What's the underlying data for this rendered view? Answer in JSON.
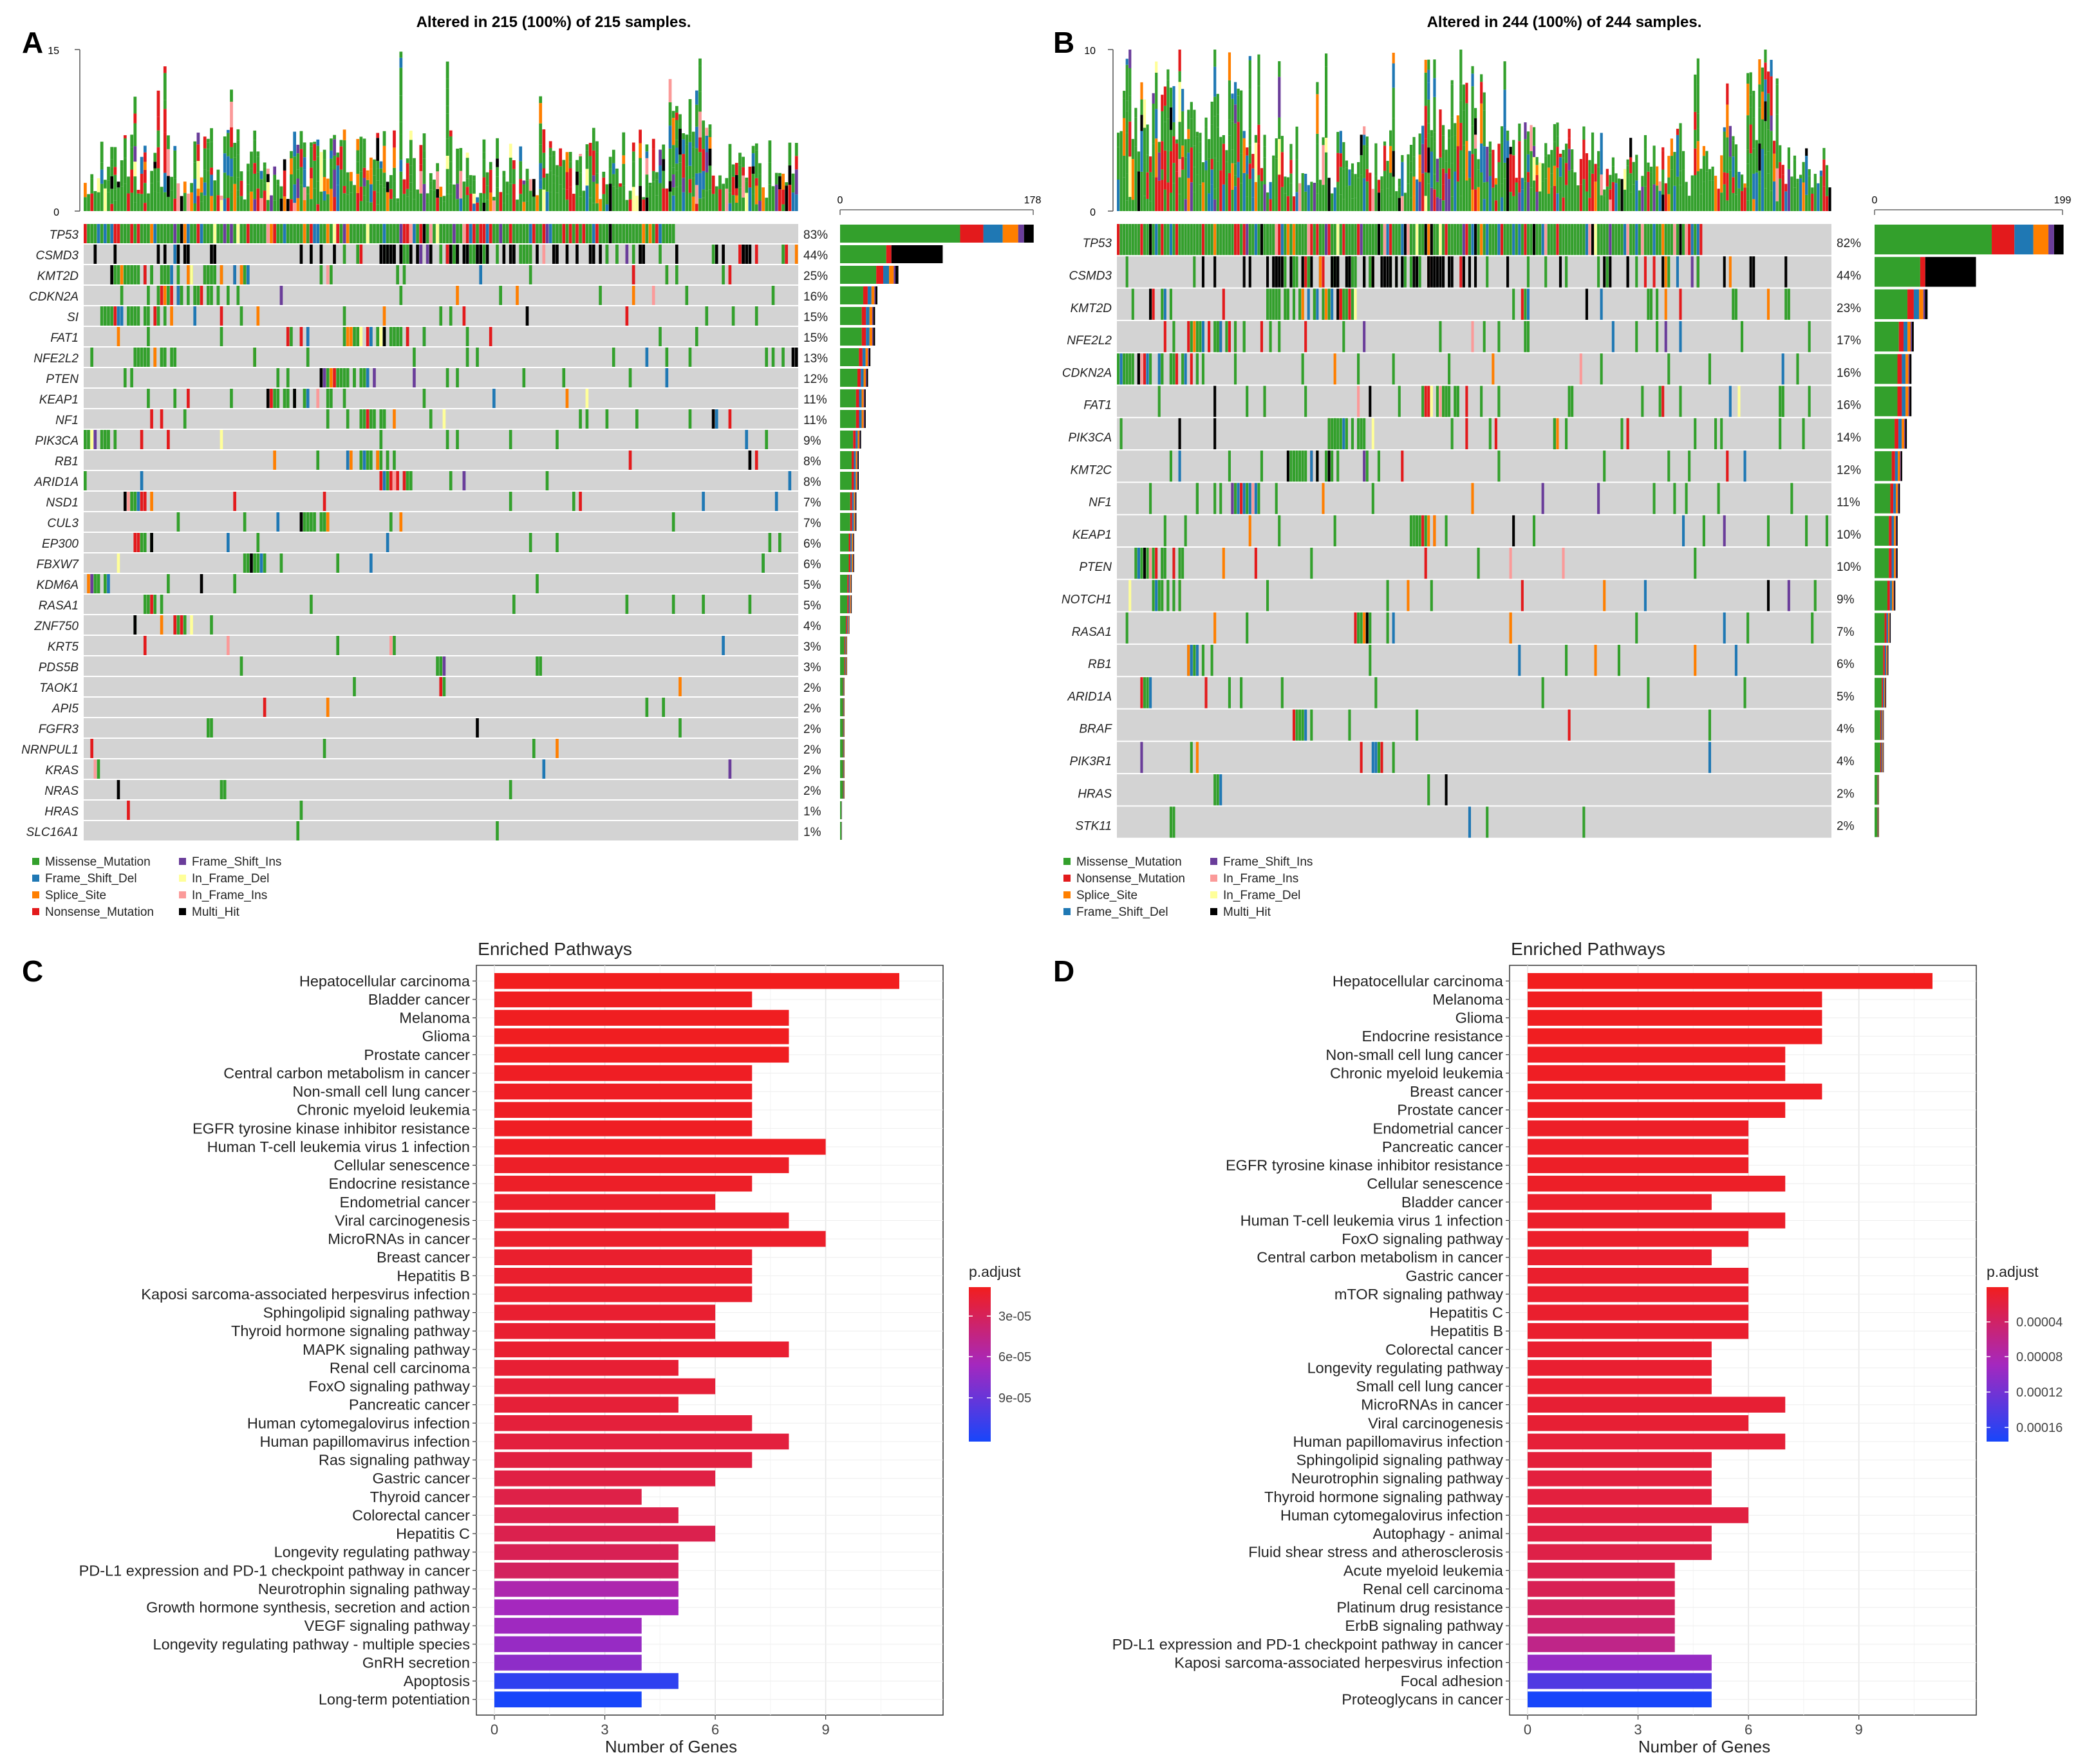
{
  "panels": {
    "A": {
      "letter": "A",
      "title": "Altered in 215 (100%) of 215 samples.",
      "tmb_max": "15",
      "tmb_min": "0",
      "bar_min": "0",
      "bar_max": "178"
    },
    "B": {
      "letter": "B",
      "title": "Altered in 244 (100%) of 244 samples.",
      "tmb_max": "10",
      "tmb_min": "0",
      "bar_min": "0",
      "bar_max": "199"
    },
    "C": {
      "letter": "C"
    },
    "D": {
      "letter": "D"
    }
  },
  "colors": {
    "Missense_Mutation": "#33a02c",
    "Frame_Shift_Del": "#1f78b4",
    "Splice_Site": "#ff7f00",
    "Nonsense_Mutation": "#e31a1c",
    "Frame_Shift_Ins": "#6a3d9a",
    "In_Frame_Del": "#ffff99",
    "In_Frame_Ins": "#fb9a99",
    "Multi_Hit": "#000000",
    "background": "#d3d3d3"
  },
  "chart_data": [
    {
      "type": "oncoplot",
      "panel": "A",
      "title": "Altered in 215 (100%) of 215 samples.",
      "samples": 215,
      "tmb_axis": [
        0,
        15
      ],
      "count_axis": [
        0,
        178
      ],
      "genes": [
        "TP53",
        "CSMD3",
        "KMT2D",
        "CDKN2A",
        "SI",
        "FAT1",
        "NFE2L2",
        "PTEN",
        "KEAP1",
        "NF1",
        "PIK3CA",
        "RB1",
        "ARID1A",
        "NSD1",
        "CUL3",
        "EP300",
        "FBXW7",
        "KDM6A",
        "RASA1",
        "ZNF750",
        "KRT5",
        "PDS5B",
        "TAOK1",
        "API5",
        "FGFR3",
        "NRNPUL1",
        "KRAS",
        "NRAS",
        "HRAS",
        "SLC16A1"
      ],
      "percents": [
        "83%",
        "44%",
        "25%",
        "16%",
        "15%",
        "15%",
        "13%",
        "12%",
        "11%",
        "11%",
        "9%",
        "8%",
        "8%",
        "7%",
        "7%",
        "6%",
        "6%",
        "5%",
        "5%",
        "4%",
        "3%",
        "3%",
        "2%",
        "2%",
        "2%",
        "2%",
        "2%",
        "2%",
        "1%",
        "1%"
      ],
      "legend": [
        "Missense_Mutation",
        "Frame_Shift_Del",
        "Splice_Site",
        "Nonsense_Mutation",
        "Frame_Shift_Ins",
        "In_Frame_Del",
        "In_Frame_Ins",
        "Multi_Hit"
      ]
    },
    {
      "type": "oncoplot",
      "panel": "B",
      "title": "Altered in 244 (100%) of 244 samples.",
      "samples": 244,
      "tmb_axis": [
        0,
        10
      ],
      "count_axis": [
        0,
        199
      ],
      "genes": [
        "TP53",
        "CSMD3",
        "KMT2D",
        "NFE2L2",
        "CDKN2A",
        "FAT1",
        "PIK3CA",
        "KMT2C",
        "NF1",
        "KEAP1",
        "PTEN",
        "NOTCH1",
        "RASA1",
        "RB1",
        "ARID1A",
        "BRAF",
        "PIK3R1",
        "HRAS",
        "STK11"
      ],
      "percents": [
        "82%",
        "44%",
        "23%",
        "17%",
        "16%",
        "16%",
        "14%",
        "12%",
        "11%",
        "10%",
        "10%",
        "9%",
        "7%",
        "6%",
        "5%",
        "4%",
        "4%",
        "2%",
        "2%"
      ],
      "legend": [
        "Missense_Mutation",
        "Nonsense_Mutation",
        "Splice_Site",
        "Frame_Shift_Del",
        "Frame_Shift_Ins",
        "In_Frame_Ins",
        "In_Frame_Del",
        "Multi_Hit"
      ]
    },
    {
      "type": "bar",
      "panel": "C",
      "title": "Enriched Pathways",
      "xlabel": "Number of Genes",
      "xlim": [
        0,
        11.7
      ],
      "xticks": [
        0,
        3,
        6,
        9
      ],
      "categories": [
        "Hepatocellular carcinoma",
        "Bladder cancer",
        "Melanoma",
        "Glioma",
        "Prostate cancer",
        "Central carbon metabolism in cancer",
        "Non-small cell lung cancer",
        "Chronic myeloid leukemia",
        "EGFR tyrosine kinase inhibitor resistance",
        "Human T-cell leukemia virus 1 infection",
        "Cellular senescence",
        "Endocrine resistance",
        "Endometrial cancer",
        "Viral carcinogenesis",
        "MicroRNAs in cancer",
        "Breast cancer",
        "Hepatitis B",
        "Kaposi sarcoma-associated herpesvirus infection",
        "Sphingolipid signaling pathway",
        "Thyroid hormone signaling pathway",
        "MAPK signaling pathway",
        "Renal cell carcinoma",
        "FoxO signaling pathway",
        "Pancreatic cancer",
        "Human cytomegalovirus infection",
        "Human papillomavirus infection",
        "Ras signaling pathway",
        "Gastric cancer",
        "Thyroid cancer",
        "Colorectal cancer",
        "Hepatitis C",
        "Longevity regulating pathway",
        "PD-L1 expression and PD-1 checkpoint pathway in cancer",
        "Neurotrophin signaling pathway",
        "Growth hormone synthesis, secretion and action",
        "VEGF signaling pathway",
        "Longevity regulating pathway - multiple species",
        "GnRH secretion",
        "Apoptosis",
        "Long-term potentiation"
      ],
      "values": [
        11,
        7,
        8,
        8,
        8,
        7,
        7,
        7,
        7,
        9,
        8,
        7,
        6,
        8,
        9,
        7,
        7,
        7,
        6,
        6,
        8,
        5,
        6,
        5,
        7,
        8,
        7,
        6,
        4,
        5,
        6,
        5,
        5,
        5,
        5,
        4,
        4,
        4,
        5,
        4
      ],
      "p_adjust_rank": [
        0,
        0.01,
        0.01,
        0.01,
        0.01,
        0.02,
        0.02,
        0.02,
        0.02,
        0.02,
        0.03,
        0.03,
        0.04,
        0.04,
        0.04,
        0.05,
        0.05,
        0.05,
        0.06,
        0.06,
        0.06,
        0.07,
        0.08,
        0.08,
        0.09,
        0.1,
        0.11,
        0.12,
        0.13,
        0.14,
        0.15,
        0.17,
        0.2,
        0.45,
        0.5,
        0.52,
        0.55,
        0.58,
        0.92,
        1.0
      ],
      "legend_title": "p.adjust",
      "legend_ticks": [
        "3e-05",
        "6e-05",
        "9e-05"
      ]
    },
    {
      "type": "bar",
      "panel": "D",
      "title": "Enriched Pathways",
      "xlabel": "Number of Genes",
      "xlim": [
        0,
        11.7
      ],
      "xticks": [
        0,
        3,
        6,
        9
      ],
      "categories": [
        "Hepatocellular carcinoma",
        "Melanoma",
        "Glioma",
        "Endocrine resistance",
        "Non-small cell lung cancer",
        "Chronic myeloid leukemia",
        "Breast cancer",
        "Prostate cancer",
        "Endometrial cancer",
        "Pancreatic cancer",
        "EGFR tyrosine kinase inhibitor resistance",
        "Cellular senescence",
        "Bladder cancer",
        "Human T-cell leukemia virus 1 infection",
        "FoxO signaling pathway",
        "Central carbon metabolism in cancer",
        "Gastric cancer",
        "mTOR signaling pathway",
        "Hepatitis C",
        "Hepatitis B",
        "Colorectal cancer",
        "Longevity regulating pathway",
        "Small cell lung cancer",
        "MicroRNAs in cancer",
        "Viral carcinogenesis",
        "Human papillomavirus infection",
        "Sphingolipid signaling pathway",
        "Neurotrophin signaling pathway",
        "Thyroid hormone signaling pathway",
        "Human cytomegalovirus infection",
        "Autophagy - animal",
        "Fluid shear stress and atherosclerosis",
        "Acute myeloid leukemia",
        "Renal cell carcinoma",
        "Platinum drug resistance",
        "ErbB signaling pathway",
        "PD-L1 expression and PD-1 checkpoint pathway in cancer",
        "Kaposi sarcoma-associated herpesvirus infection",
        "Focal adhesion",
        "Proteoglycans in cancer"
      ],
      "values": [
        11,
        8,
        8,
        8,
        7,
        7,
        8,
        7,
        6,
        6,
        6,
        7,
        5,
        7,
        6,
        5,
        6,
        6,
        6,
        6,
        5,
        5,
        5,
        7,
        6,
        7,
        5,
        5,
        5,
        6,
        5,
        5,
        4,
        4,
        4,
        4,
        4,
        5,
        5,
        5
      ],
      "p_adjust_rank": [
        0,
        0.01,
        0.01,
        0.01,
        0.02,
        0.02,
        0.02,
        0.02,
        0.03,
        0.03,
        0.03,
        0.03,
        0.04,
        0.04,
        0.04,
        0.05,
        0.05,
        0.05,
        0.05,
        0.05,
        0.06,
        0.06,
        0.06,
        0.07,
        0.07,
        0.08,
        0.09,
        0.1,
        0.1,
        0.11,
        0.12,
        0.13,
        0.15,
        0.17,
        0.2,
        0.25,
        0.33,
        0.55,
        0.8,
        1.0
      ],
      "legend_title": "p.adjust",
      "legend_ticks": [
        "0.00004",
        "0.00008",
        "0.00012",
        "0.00016"
      ]
    }
  ]
}
